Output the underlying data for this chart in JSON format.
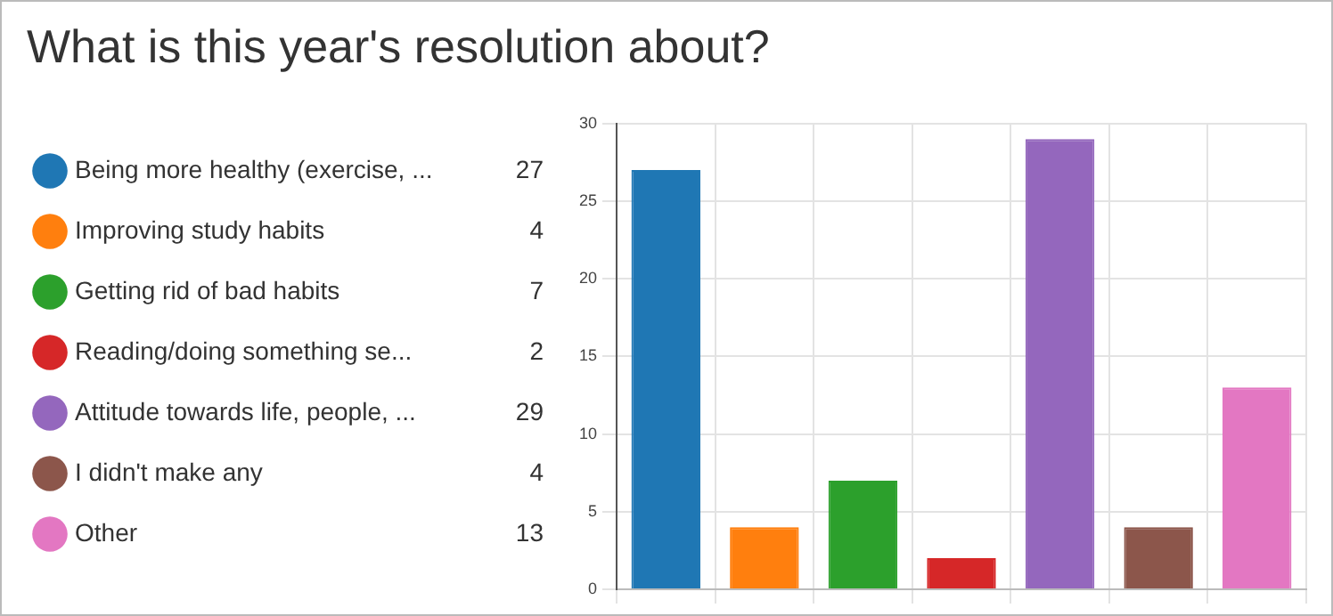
{
  "chart_data": {
    "type": "bar",
    "title": "What is this year's resolution about?",
    "categories": [
      null,
      null,
      null,
      null,
      null,
      null,
      null
    ],
    "series": [
      {
        "name": "Being more healthy (exercise, ...",
        "color": "#1f77b4",
        "values": [
          27,
          null,
          null,
          null,
          null,
          null,
          null
        ]
      },
      {
        "name": "Improving study habits",
        "color": "#ff7f0e",
        "values": [
          null,
          4,
          null,
          null,
          null,
          null,
          null
        ]
      },
      {
        "name": "Getting rid of bad habits",
        "color": "#2ca02c",
        "values": [
          null,
          null,
          7,
          null,
          null,
          null,
          null
        ]
      },
      {
        "name": "Reading/doing something se...",
        "color": "#d62728",
        "values": [
          null,
          null,
          null,
          2,
          null,
          null,
          null
        ]
      },
      {
        "name": "Attitude towards life, people, ...",
        "color": "#9467bd",
        "values": [
          null,
          null,
          null,
          null,
          29,
          null,
          null
        ]
      },
      {
        "name": "I didn't make any",
        "color": "#8c564b",
        "values": [
          null,
          null,
          null,
          null,
          null,
          4,
          null
        ]
      },
      {
        "name": "Other",
        "color": "#e377c2",
        "values": [
          null,
          null,
          null,
          null,
          null,
          null,
          13
        ]
      }
    ],
    "ylim": [
      0,
      30
    ],
    "yticks": [
      0,
      5,
      10,
      15,
      20,
      25,
      30
    ],
    "grid": true,
    "legend": "left",
    "tick_labels": "y",
    "annotations": [
      "27",
      "4",
      "7",
      "2",
      "29",
      "4",
      "13"
    ]
  }
}
